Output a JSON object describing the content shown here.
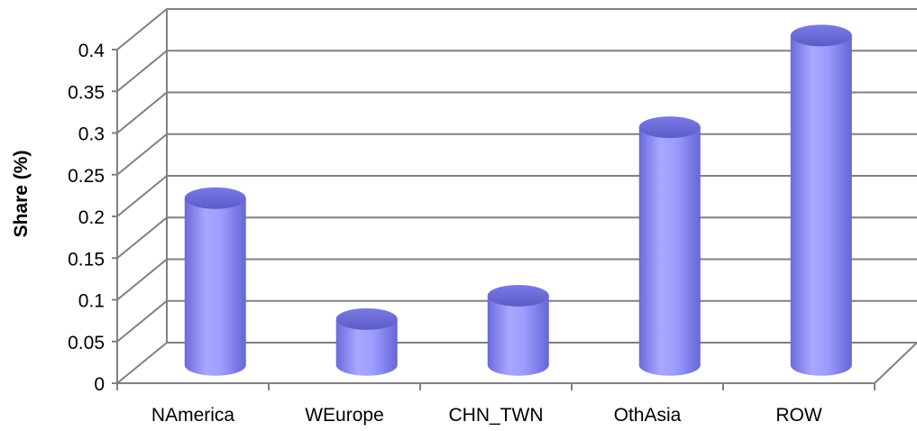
{
  "chart_data": {
    "type": "bar",
    "style": "3d-cylinder",
    "categories": [
      "NAmerica",
      "WEurope",
      "CHN_TWN",
      "OthAsia",
      "ROW"
    ],
    "values": [
      0.2,
      0.055,
      0.083,
      0.285,
      0.395
    ],
    "ylabel": "Share (%)",
    "ylim": [
      0,
      0.4
    ],
    "yticks": [
      0,
      0.05,
      0.1,
      0.15,
      0.2,
      0.25,
      0.3,
      0.35,
      0.4
    ],
    "ytick_labels": [
      "0",
      "0.05",
      "0.1",
      "0.15",
      "0.2",
      "0.25",
      "0.3",
      "0.35",
      "0.4"
    ],
    "grid": true,
    "legend": "none",
    "bar_color": "#9999ff"
  }
}
